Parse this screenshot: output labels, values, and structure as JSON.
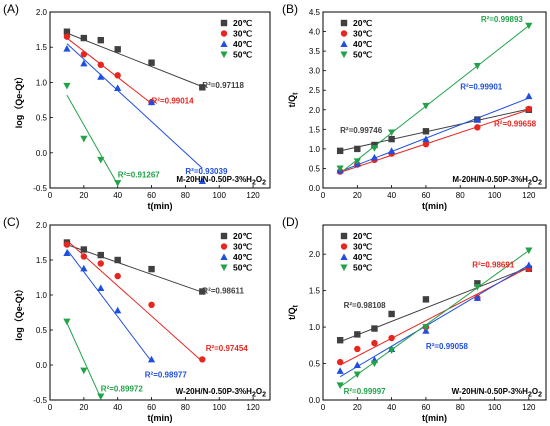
{
  "series_meta": [
    {
      "name": "20℃",
      "color": "#404040",
      "marker": "square"
    },
    {
      "name": "30℃",
      "color": "#e8261f",
      "marker": "circle"
    },
    {
      "name": "40℃",
      "color": "#1f4fe0",
      "marker": "triangle-up"
    },
    {
      "name": "50℃",
      "color": "#22a34a",
      "marker": "triangle-down"
    }
  ],
  "chart_data": [
    {
      "panel_label": "(A)",
      "type": "scatter",
      "ylabel": "log（Qe-Qt）",
      "xlabel": "t(min)",
      "annotation": "M-20H/N-0.50P-3%H2O2",
      "xlim": [
        0,
        130
      ],
      "ylim": [
        -0.5,
        2.0
      ],
      "xticks": [
        0,
        20,
        40,
        60,
        80,
        100,
        120
      ],
      "yticks": [
        -0.5,
        0.0,
        0.5,
        1.0,
        1.5,
        2.0
      ],
      "ytick_labels": [
        "-0.5",
        "0.0",
        "0.5",
        "1.0",
        "1.5",
        "2.0"
      ],
      "legend": "top-right",
      "series": [
        {
          "name": "20℃",
          "x": [
            10,
            20,
            30,
            40,
            60,
            90
          ],
          "y": [
            1.72,
            1.63,
            1.6,
            1.47,
            1.28,
            0.93
          ],
          "fit": [
            [
              10,
              1.7
            ],
            [
              90,
              0.94
            ]
          ],
          "r2": "R²=0.97118"
        },
        {
          "name": "30℃",
          "x": [
            10,
            20,
            30,
            40,
            60
          ],
          "y": [
            1.65,
            1.4,
            1.25,
            1.1,
            0.72
          ],
          "fit": [
            [
              10,
              1.63
            ],
            [
              60,
              0.7
            ]
          ],
          "r2": "R²=0.99014"
        },
        {
          "name": "40℃",
          "x": [
            10,
            20,
            30,
            40,
            60,
            90
          ],
          "y": [
            1.48,
            1.27,
            1.08,
            0.92,
            0.72,
            -0.4
          ],
          "fit": [
            [
              10,
              1.55
            ],
            [
              90,
              -0.22
            ]
          ],
          "r2": "R²=0.93039"
        },
        {
          "name": "50℃",
          "x": [
            10,
            20,
            30,
            40
          ],
          "y": [
            0.95,
            0.2,
            -0.1,
            -0.43
          ],
          "fit": [
            [
              10,
              0.82
            ],
            [
              40,
              -0.45
            ]
          ],
          "r2": "R²=0.91267"
        }
      ]
    },
    {
      "panel_label": "(B)",
      "type": "scatter",
      "ylabel": "t/Qt",
      "xlabel": "t(min)",
      "annotation": "M-20H/N-0.50P-3%H2O2",
      "xlim": [
        0,
        130
      ],
      "ylim": [
        0,
        4.5
      ],
      "xticks": [
        0,
        20,
        40,
        60,
        80,
        100,
        120
      ],
      "yticks": [
        0,
        0.5,
        1.0,
        1.5,
        2.0,
        2.5,
        3.0,
        3.5,
        4.0,
        4.5
      ],
      "ytick_labels": [
        "0.0",
        "0.5",
        "1.0",
        "1.5",
        "2.0",
        "2.5",
        "3.0",
        "3.5",
        "4.0",
        "4.5"
      ],
      "legend": "top-left",
      "series": [
        {
          "name": "20℃",
          "x": [
            10,
            20,
            30,
            40,
            60,
            90,
            120
          ],
          "y": [
            0.95,
            1.0,
            1.1,
            1.25,
            1.45,
            1.75,
            2.0
          ],
          "fit": [
            [
              10,
              0.95
            ],
            [
              120,
              2.02
            ]
          ],
          "r2": "R²=0.99746"
        },
        {
          "name": "30℃",
          "x": [
            10,
            20,
            30,
            40,
            60,
            90,
            120
          ],
          "y": [
            0.42,
            0.6,
            0.72,
            0.88,
            1.12,
            1.55,
            2.02
          ],
          "fit": [
            [
              10,
              0.4
            ],
            [
              120,
              2.0
            ]
          ],
          "r2": "R²=0.99658"
        },
        {
          "name": "40℃",
          "x": [
            10,
            20,
            30,
            40,
            60,
            90,
            120
          ],
          "y": [
            0.45,
            0.62,
            0.78,
            0.95,
            1.25,
            1.75,
            2.35
          ],
          "fit": [
            [
              10,
              0.42
            ],
            [
              120,
              2.3
            ]
          ],
          "r2": "R²=0.99901"
        },
        {
          "name": "50℃",
          "x": [
            10,
            20,
            30,
            40,
            60,
            90,
            120
          ],
          "y": [
            0.5,
            0.68,
            1.02,
            1.42,
            2.1,
            3.12,
            4.15
          ],
          "fit": [
            [
              10,
              0.38
            ],
            [
              120,
              4.15
            ]
          ],
          "r2": "R²=0.99893"
        }
      ]
    },
    {
      "panel_label": "(C)",
      "type": "scatter",
      "ylabel": "log（Qe-Qt）",
      "xlabel": "t(min)",
      "annotation": "W-20H/N-0.50P-3%H2O2",
      "xlim": [
        0,
        130
      ],
      "ylim": [
        -0.5,
        2.0
      ],
      "xticks": [
        0,
        20,
        40,
        60,
        80,
        100,
        120
      ],
      "yticks": [
        -0.5,
        0.0,
        0.5,
        1.0,
        1.5,
        2.0
      ],
      "ytick_labels": [
        "-0.5",
        "0.0",
        "0.5",
        "1.0",
        "1.5",
        "2.0"
      ],
      "legend": "top-right",
      "series": [
        {
          "name": "20℃",
          "x": [
            10,
            20,
            30,
            40,
            60,
            90
          ],
          "y": [
            1.75,
            1.65,
            1.57,
            1.5,
            1.37,
            1.05
          ],
          "fit": [
            [
              10,
              1.72
            ],
            [
              90,
              1.04
            ]
          ],
          "r2": "R²=0.98611"
        },
        {
          "name": "30℃",
          "x": [
            10,
            20,
            30,
            40,
            60,
            90
          ],
          "y": [
            1.72,
            1.55,
            1.45,
            1.27,
            0.86,
            0.08
          ],
          "fit": [
            [
              10,
              1.78
            ],
            [
              90,
              0.05
            ]
          ],
          "r2": "R²=0.97454"
        },
        {
          "name": "40℃",
          "x": [
            10,
            20,
            30,
            40,
            60
          ],
          "y": [
            1.6,
            1.38,
            1.1,
            0.78,
            0.08
          ],
          "fit": [
            [
              10,
              1.65
            ],
            [
              60,
              0.05
            ]
          ],
          "r2": "R²=0.98977"
        },
        {
          "name": "50℃",
          "x": [
            10,
            20,
            30
          ],
          "y": [
            0.62,
            -0.08,
            -0.45
          ],
          "fit": [
            [
              10,
              0.6
            ],
            [
              30,
              -0.47
            ]
          ],
          "r2": "R²=0.89972"
        }
      ]
    },
    {
      "panel_label": "(D)",
      "type": "scatter",
      "ylabel": "t/Qt",
      "xlabel": "t(min)",
      "annotation": "W-20H/N-0.50P-3%H2O2",
      "xlim": [
        0,
        130
      ],
      "ylim": [
        0,
        2.4
      ],
      "xticks": [
        0,
        20,
        40,
        60,
        80,
        100,
        120
      ],
      "yticks": [
        0,
        0.5,
        1.0,
        1.5,
        2.0
      ],
      "ytick_labels": [
        "0.0",
        "0.5",
        "1.0",
        "1.5",
        "2.0"
      ],
      "legend": "top-left",
      "series": [
        {
          "name": "20℃",
          "x": [
            10,
            20,
            30,
            40,
            60,
            90,
            120
          ],
          "y": [
            0.82,
            0.9,
            0.98,
            1.18,
            1.38,
            1.6,
            1.8
          ],
          "fit": [
            [
              10,
              0.8
            ],
            [
              120,
              1.82
            ]
          ],
          "r2": "R²=0.98108"
        },
        {
          "name": "30℃",
          "x": [
            10,
            20,
            30,
            40,
            60,
            90,
            120
          ],
          "y": [
            0.52,
            0.7,
            0.78,
            0.85,
            1.0,
            1.4,
            1.8
          ],
          "fit": [
            [
              10,
              0.48
            ],
            [
              120,
              1.82
            ]
          ],
          "r2": "R²=0.98691"
        },
        {
          "name": "40℃",
          "x": [
            10,
            20,
            30,
            40,
            60,
            90,
            120
          ],
          "y": [
            0.4,
            0.48,
            0.55,
            0.7,
            0.95,
            1.4,
            1.85
          ],
          "fit": [
            [
              10,
              0.32
            ],
            [
              120,
              1.85
            ]
          ],
          "r2": "R²=0.99058"
        },
        {
          "name": "50℃",
          "x": [
            10,
            20,
            30,
            40,
            60,
            90,
            120
          ],
          "y": [
            0.2,
            0.35,
            0.5,
            0.68,
            1.0,
            1.55,
            2.05
          ],
          "fit": [
            [
              10,
              0.18
            ],
            [
              120,
              2.05
            ]
          ],
          "r2": "R²=0.99997"
        }
      ]
    }
  ]
}
